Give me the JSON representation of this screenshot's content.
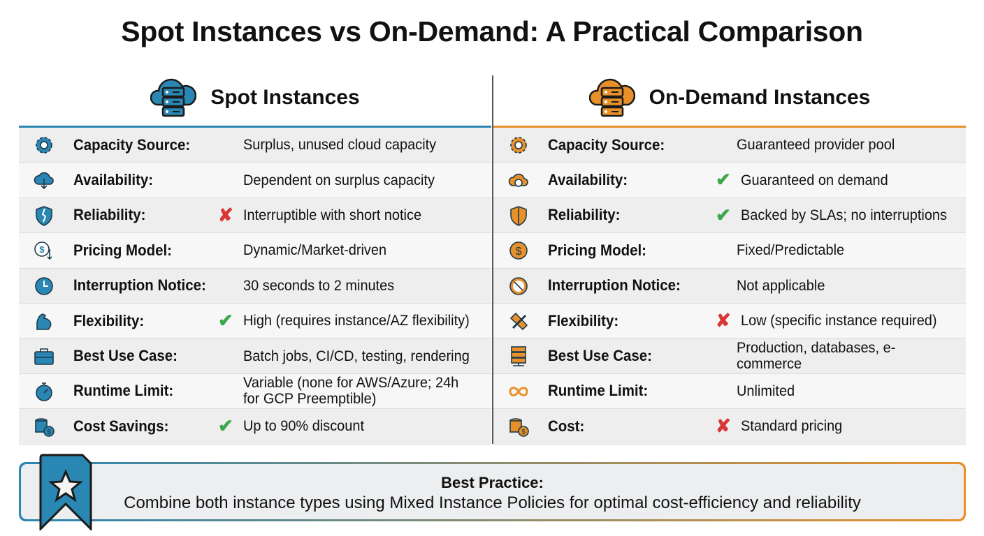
{
  "title": "Spot Instances vs On-Demand: A Practical Comparison",
  "colors": {
    "spot": "#2a86b2",
    "ondemand": "#e8912a",
    "check": "#3aa84a",
    "cross": "#d93636"
  },
  "spot": {
    "title": "Spot Instances",
    "icon": "cloud-server-icon",
    "rows": [
      {
        "icon": "gear",
        "label": "Capacity Source:",
        "value": "Surplus, unused cloud capacity",
        "mark": ""
      },
      {
        "icon": "cloud-download",
        "label": "Availability:",
        "value": "Dependent on surplus capacity",
        "mark": ""
      },
      {
        "icon": "broken-shield",
        "label": "Reliability:",
        "value": "Interruptible with short notice",
        "mark": "cross"
      },
      {
        "icon": "dollar-down",
        "label": "Pricing Model:",
        "value": "Dynamic/Market-driven",
        "mark": ""
      },
      {
        "icon": "clock",
        "label": "Interruption Notice:",
        "value": "30 seconds to 2 minutes",
        "mark": ""
      },
      {
        "icon": "arm",
        "label": "Flexibility:",
        "value": "High (requires instance/AZ flexibility)",
        "mark": "check"
      },
      {
        "icon": "toolbox",
        "label": "Best Use Case:",
        "value": "Batch jobs, CI/CD, testing, rendering",
        "mark": ""
      },
      {
        "icon": "stopwatch",
        "label": "Runtime Limit:",
        "value": "Variable (none for AWS/Azure; 24h for GCP Preemptible)",
        "mark": ""
      },
      {
        "icon": "coins",
        "label": "Cost Savings:",
        "value": "Up to 90% discount",
        "mark": "check"
      }
    ]
  },
  "ondemand": {
    "title": "On-Demand Instances",
    "icon": "cloud-server-icon",
    "rows": [
      {
        "icon": "gear",
        "label": "Capacity Source:",
        "value": "Guaranteed provider pool",
        "mark": ""
      },
      {
        "icon": "cloud-check",
        "label": "Availability:",
        "value": "Guaranteed on demand",
        "mark": "check"
      },
      {
        "icon": "shield",
        "label": "Reliability:",
        "value": "Backed by SLAs; no interruptions",
        "mark": "check"
      },
      {
        "icon": "dollar",
        "label": "Pricing Model:",
        "value": "Fixed/Predictable",
        "mark": ""
      },
      {
        "icon": "no-clock",
        "label": "Interruption Notice:",
        "value": "Not applicable",
        "mark": ""
      },
      {
        "icon": "bent-tools",
        "label": "Flexibility:",
        "value": "Low (specific instance required)",
        "mark": "cross"
      },
      {
        "icon": "server",
        "label": "Best Use Case:",
        "value": "Production, databases, e-commerce",
        "mark": ""
      },
      {
        "icon": "infinity",
        "label": "Runtime Limit:",
        "value": "Unlimited",
        "mark": ""
      },
      {
        "icon": "coins",
        "label": "Cost:",
        "value": "Standard pricing",
        "mark": "cross"
      }
    ]
  },
  "best_practice": {
    "title": "Best Practice:",
    "text": "Combine both instance types using Mixed Instance Policies for optimal cost-efficiency and reliability",
    "icon": "star-ribbon-icon"
  }
}
